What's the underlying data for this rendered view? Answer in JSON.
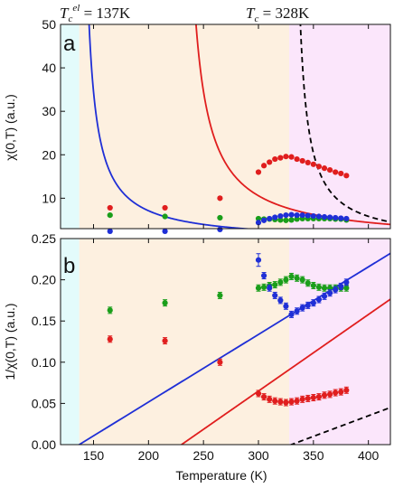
{
  "chart_data": [
    {
      "panel": "a",
      "type": "scatter",
      "ylabel": "χ(0,T) (a.u.)",
      "xlim": [
        120,
        420
      ],
      "ylim": [
        3,
        50
      ],
      "yticks": [
        10,
        20,
        30,
        40,
        50
      ],
      "tick_labels": [
        "10",
        "20",
        "30",
        "40",
        "50"
      ],
      "series": [
        {
          "color": "#e01e1e",
          "points": [
            [
              165,
              7.8
            ],
            [
              215,
              7.8
            ],
            [
              265,
              10
            ],
            [
              300,
              16
            ],
            [
              305,
              17.5
            ],
            [
              310,
              18.3
            ],
            [
              315,
              19
            ],
            [
              320,
              19.3
            ],
            [
              325,
              19.6
            ],
            [
              330,
              19.5
            ],
            [
              335,
              19
            ],
            [
              340,
              18.6
            ],
            [
              345,
              18.2
            ],
            [
              350,
              17.8
            ],
            [
              355,
              17.3
            ],
            [
              360,
              16.9
            ],
            [
              365,
              16.5
            ],
            [
              370,
              16
            ],
            [
              375,
              15.7
            ],
            [
              380,
              15.2
            ]
          ]
        },
        {
          "color": "#1a9e1a",
          "points": [
            [
              165,
              6.1
            ],
            [
              215,
              5.8
            ],
            [
              265,
              5.5
            ],
            [
              300,
              5.3
            ],
            [
              305,
              5.2
            ],
            [
              310,
              5.2
            ],
            [
              315,
              5.1
            ],
            [
              320,
              5
            ],
            [
              325,
              4.9
            ],
            [
              330,
              5
            ],
            [
              335,
              5.2
            ],
            [
              340,
              5.3
            ],
            [
              345,
              5.3
            ],
            [
              350,
              5.3
            ],
            [
              355,
              5.3
            ],
            [
              360,
              5.3
            ],
            [
              365,
              5.3
            ],
            [
              370,
              5.2
            ],
            [
              375,
              5.2
            ],
            [
              380,
              5
            ]
          ]
        },
        {
          "color": "#1f2fd6",
          "points": [
            [
              165,
              2.4
            ],
            [
              215,
              2.4
            ],
            [
              265,
              2.8
            ],
            [
              300,
              4.4
            ],
            [
              305,
              4.9
            ],
            [
              310,
              5.3
            ],
            [
              315,
              5.6
            ],
            [
              320,
              5.9
            ],
            [
              325,
              6.1
            ],
            [
              330,
              6.2
            ],
            [
              335,
              6.1
            ],
            [
              340,
              6.1
            ],
            [
              345,
              6
            ],
            [
              350,
              5.9
            ],
            [
              355,
              5.8
            ],
            [
              360,
              5.7
            ],
            [
              365,
              5.6
            ],
            [
              370,
              5.5
            ],
            [
              375,
              5.4
            ],
            [
              380,
              5.3
            ]
          ]
        }
      ],
      "curves": [
        {
          "color": "#1f2fd6",
          "style": "solid",
          "A": 1,
          "B": 0.00223,
          "Tc": 137
        },
        {
          "color": "#e01e1e",
          "style": "solid",
          "A": 0.7,
          "B": 0.00092,
          "Tc": 228
        },
        {
          "color": "#000000",
          "style": "dashed",
          "A": 1,
          "B": 0.00245,
          "Tc": 330
        }
      ]
    },
    {
      "panel": "b",
      "type": "scatter",
      "xlabel": "Temperature (K)",
      "ylabel": "1/χ(0,T) (a.u.)",
      "xlim": [
        120,
        420
      ],
      "ylim": [
        0,
        0.25
      ],
      "xticks": [
        150,
        200,
        250,
        300,
        350,
        400
      ],
      "xtick_labels": [
        "150",
        "200",
        "250",
        "300",
        "350",
        "400"
      ],
      "yticks": [
        0,
        0.05,
        0.1,
        0.15,
        0.2,
        0.25
      ],
      "ytick_labels": [
        "0.00",
        "0.05",
        "0.10",
        "0.15",
        "0.20",
        "0.25"
      ],
      "series": [
        {
          "color": "#e01e1e",
          "points": [
            [
              165,
              0.128
            ],
            [
              215,
              0.126
            ],
            [
              265,
              0.1
            ],
            [
              300,
              0.062
            ],
            [
              305,
              0.058
            ],
            [
              310,
              0.055
            ],
            [
              315,
              0.053
            ],
            [
              320,
              0.052
            ],
            [
              325,
              0.051
            ],
            [
              330,
              0.052
            ],
            [
              335,
              0.053
            ],
            [
              340,
              0.055
            ],
            [
              345,
              0.056
            ],
            [
              350,
              0.057
            ],
            [
              355,
              0.058
            ],
            [
              360,
              0.06
            ],
            [
              365,
              0.061
            ],
            [
              370,
              0.063
            ],
            [
              375,
              0.064
            ],
            [
              380,
              0.066
            ]
          ]
        },
        {
          "color": "#1a9e1a",
          "points": [
            [
              165,
              0.163
            ],
            [
              215,
              0.172
            ],
            [
              265,
              0.181
            ],
            [
              300,
              0.19
            ],
            [
              305,
              0.191
            ],
            [
              310,
              0.193
            ],
            [
              315,
              0.194
            ],
            [
              320,
              0.197
            ],
            [
              325,
              0.2
            ],
            [
              330,
              0.204
            ],
            [
              335,
              0.202
            ],
            [
              340,
              0.2
            ],
            [
              345,
              0.196
            ],
            [
              350,
              0.193
            ],
            [
              355,
              0.191
            ],
            [
              360,
              0.19
            ],
            [
              365,
              0.19
            ],
            [
              370,
              0.19
            ],
            [
              375,
              0.19
            ],
            [
              380,
              0.19
            ]
          ]
        },
        {
          "color": "#1f2fd6",
          "points": [
            [
              300,
              0.224
            ],
            [
              305,
              0.205
            ],
            [
              310,
              0.19
            ],
            [
              315,
              0.181
            ],
            [
              320,
              0.175
            ],
            [
              325,
              0.168
            ],
            [
              330,
              0.158
            ],
            [
              335,
              0.162
            ],
            [
              340,
              0.166
            ],
            [
              345,
              0.169
            ],
            [
              350,
              0.172
            ],
            [
              355,
              0.176
            ],
            [
              360,
              0.18
            ],
            [
              365,
              0.184
            ],
            [
              370,
              0.188
            ],
            [
              375,
              0.192
            ],
            [
              380,
              0.197
            ]
          ]
        }
      ],
      "curves": [
        {
          "color": "#1f2fd6",
          "style": "solid",
          "A": 1,
          "B": 0.00082,
          "Tc": 137
        },
        {
          "color": "#e01e1e",
          "style": "solid",
          "A": 0.7,
          "B": 0.00065,
          "Tc": 230
        },
        {
          "color": "#000000",
          "style": "dashed",
          "A": 1,
          "B": 0.0005,
          "Tc": 330
        }
      ]
    }
  ],
  "regions": [
    {
      "from": 120,
      "to": 137,
      "color": "#e3fbfb"
    },
    {
      "from": 137,
      "to": 328,
      "color": "#fdf0e0"
    },
    {
      "from": 328,
      "to": 420,
      "color": "#fbe6fb"
    }
  ],
  "annotations": {
    "tc_el_label": "T",
    "tc_el_sub": "c",
    "tc_el_sup": "el",
    "tc_el_value": " = 137K",
    "tc_label": "T",
    "tc_sub": "c",
    "tc_value": " = 328K"
  }
}
